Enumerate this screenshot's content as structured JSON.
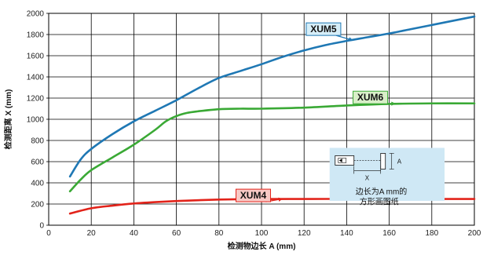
{
  "chart_data": {
    "type": "line",
    "xlabel": "检测物边长 A (mm)",
    "ylabel": "检测距离 X (mm)",
    "xlim": [
      0,
      200
    ],
    "ylim": [
      0,
      2000
    ],
    "x_ticks": [
      0,
      20,
      40,
      60,
      80,
      100,
      120,
      140,
      160,
      180,
      200
    ],
    "y_ticks": [
      0,
      200,
      400,
      600,
      800,
      1000,
      1200,
      1400,
      1600,
      1800,
      2000
    ],
    "grid": true,
    "series": [
      {
        "name": "XUM5",
        "color": "#1f78b4",
        "label_bg": "#d6eef8",
        "label_border": "#1f78b4",
        "x": [
          10,
          15,
          20,
          30,
          40,
          50,
          60,
          70,
          80,
          90,
          100,
          110,
          120,
          130,
          140,
          150,
          160,
          170,
          180,
          190,
          200
        ],
        "y": [
          460,
          620,
          720,
          860,
          980,
          1080,
          1180,
          1290,
          1390,
          1455,
          1520,
          1590,
          1650,
          1700,
          1740,
          1775,
          1810,
          1850,
          1890,
          1930,
          1970
        ]
      },
      {
        "name": "XUM6",
        "color": "#3aa935",
        "label_bg": "#d9efc9",
        "label_border": "#3aa935",
        "x": [
          10,
          15,
          20,
          30,
          40,
          50,
          55,
          60,
          65,
          70,
          80,
          90,
          100,
          120,
          140,
          160,
          180,
          200
        ],
        "y": [
          320,
          430,
          520,
          640,
          760,
          900,
          980,
          1030,
          1060,
          1075,
          1095,
          1100,
          1100,
          1110,
          1130,
          1145,
          1150,
          1150
        ]
      },
      {
        "name": "XUM4",
        "color": "#e2231a",
        "label_bg": "#f8c9c5",
        "label_border": "#e2231a",
        "x": [
          10,
          20,
          30,
          40,
          50,
          60,
          70,
          80,
          90,
          100,
          120,
          140,
          160,
          180,
          200
        ],
        "y": [
          110,
          160,
          185,
          205,
          218,
          228,
          236,
          242,
          245,
          247,
          248,
          248,
          248,
          248,
          248
        ]
      }
    ],
    "inset": {
      "dimension_x": "X",
      "dimension_a": "A",
      "text_line1": "边长为A mm的",
      "text_line2": "方形画图纸",
      "background": "#cfe8f5"
    }
  }
}
